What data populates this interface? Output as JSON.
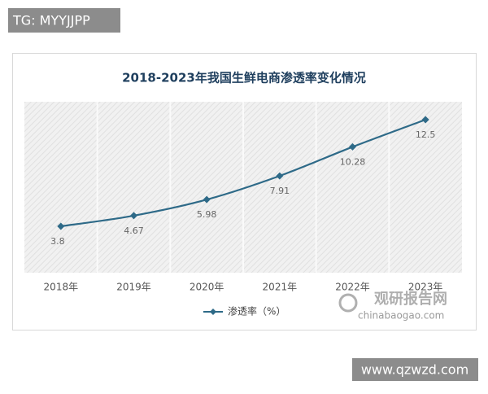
{
  "tag": "TG: MYYJJPP",
  "chart_data": {
    "type": "line",
    "title": "2018-2023年我国生鲜电商渗透率变化情况",
    "categories": [
      "2018年",
      "2019年",
      "2020年",
      "2021年",
      "2022年",
      "2023年"
    ],
    "series": [
      {
        "name": "渗透率（%）",
        "color": "#2e6a88",
        "values": [
          3.8,
          4.67,
          5.98,
          7.91,
          10.28,
          12.5
        ]
      }
    ],
    "legend": "bottom"
  },
  "watermark": {
    "title": "观研报告网",
    "url": "chinabaogao.com"
  },
  "footer_url": "www.qzwzd.com"
}
